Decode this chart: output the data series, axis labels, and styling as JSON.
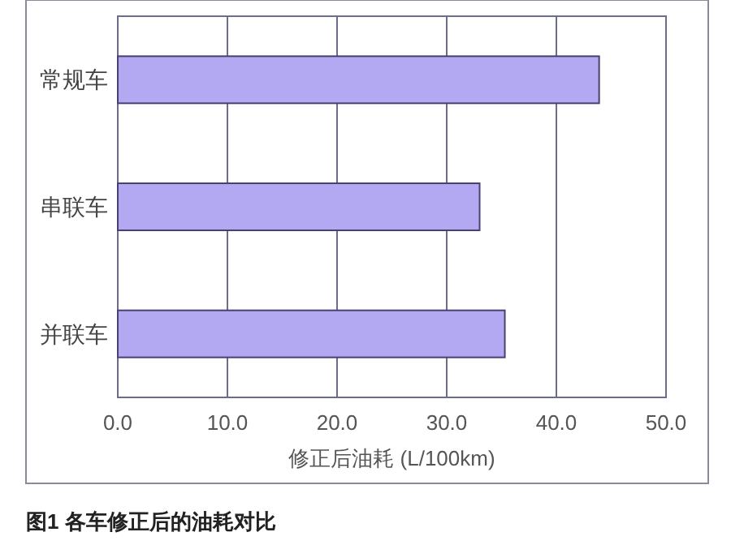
{
  "chart_data": {
    "type": "bar",
    "orientation": "horizontal",
    "categories": [
      "常规车",
      "串联车",
      "并联车"
    ],
    "values": [
      43.9,
      33.0,
      35.3
    ],
    "color": "#b3a9f2",
    "xlim": [
      0,
      50
    ],
    "xticks": [
      {
        "value": 0,
        "label": "0.0"
      },
      {
        "value": 10,
        "label": "10.0"
      },
      {
        "value": 20,
        "label": "20.0"
      },
      {
        "value": 30,
        "label": "30.0"
      },
      {
        "value": 40,
        "label": "40.0"
      },
      {
        "value": 50,
        "label": "50.0"
      }
    ],
    "grid": "x",
    "xlabel": "修正后油耗 (L/100km)",
    "annotations": [
      "图1 各车修正后的油耗对比"
    ]
  }
}
